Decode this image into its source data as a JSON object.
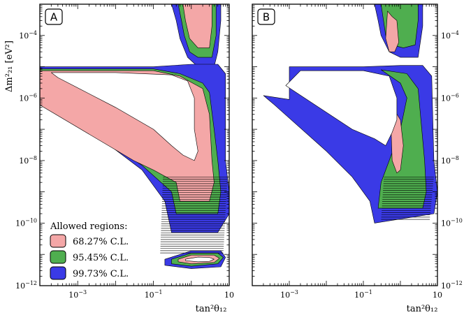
{
  "colors": {
    "c68": "#f4a7a7",
    "c95": "#4fae4f",
    "c99": "#3a3ae6",
    "frame": "#000000"
  },
  "chart_data": {
    "type": "contour",
    "xscale": "log",
    "yscale": "log",
    "xlim": [
      0.0001,
      10
    ],
    "ylim": [
      1e-12,
      0.001
    ],
    "grid": false,
    "ylabel": "Δm²₂₁ [eV²]",
    "xlabel": "tan²θ₁₂",
    "x_ticks": [
      {
        "value": 0.001,
        "base": "10",
        "exp": "−3"
      },
      {
        "value": 0.1,
        "base": "10",
        "exp": "−1"
      },
      {
        "value": 10,
        "base": "10",
        "exp": ""
      }
    ],
    "y_ticks": [
      {
        "value": 0.0001,
        "base": "10",
        "exp": "−4"
      },
      {
        "value": 1e-06,
        "base": "10",
        "exp": "−6"
      },
      {
        "value": 1e-08,
        "base": "10",
        "exp": "−8"
      },
      {
        "value": 1e-10,
        "base": "10",
        "exp": "−10"
      },
      {
        "value": 1e-12,
        "base": "10",
        "exp": "−12"
      }
    ],
    "legend": {
      "title": "Allowed regions:",
      "placement": "bottom-left of panel A",
      "entries": [
        {
          "label": "68.27% C.L.",
          "color_key": "c68"
        },
        {
          "label": "95.45% C.L.",
          "color_key": "c95"
        },
        {
          "label": "99.73% C.L.",
          "color_key": "c99"
        }
      ]
    },
    "panels": [
      {
        "label": "A",
        "y_axis_side": "left",
        "regions": [
          {
            "cl": "99.73",
            "points": [
              [
                0.3,
                0.001
              ],
              [
                0.4,
                0.0003
              ],
              [
                0.5,
                8e-05
              ],
              [
                0.8,
                2e-05
              ],
              [
                1.5,
                1e-05
              ],
              [
                4,
                1e-05
              ],
              [
                5,
                3e-05
              ],
              [
                6,
                0.0003
              ],
              [
                6,
                0.001
              ]
            ]
          },
          {
            "cl": "95.45",
            "points": [
              [
                0.45,
                0.001
              ],
              [
                0.55,
                0.0003
              ],
              [
                0.65,
                0.0001
              ],
              [
                0.9,
                3e-05
              ],
              [
                1.5,
                2e-05
              ],
              [
                3.5,
                2e-05
              ],
              [
                4.5,
                0.0001
              ],
              [
                4.5,
                0.001
              ]
            ]
          },
          {
            "cl": "68.27",
            "points": [
              [
                0.6,
                0.001
              ],
              [
                0.7,
                0.0003
              ],
              [
                0.9,
                8e-05
              ],
              [
                1.5,
                4e-05
              ],
              [
                3,
                4e-05
              ],
              [
                3.5,
                0.0002
              ],
              [
                3.5,
                0.001
              ]
            ]
          },
          {
            "cl": "99.73",
            "points": [
              [
                0.0001,
                1e-05
              ],
              [
                0.01,
                1e-05
              ],
              [
                0.1,
                1e-05
              ],
              [
                1,
                1.2e-05
              ],
              [
                5,
                1.2e-05
              ],
              [
                8,
                6e-06
              ],
              [
                8,
                1e-08
              ],
              [
                10,
                1e-09
              ],
              [
                10,
                2e-10
              ],
              [
                5,
                5e-11
              ],
              [
                0.3,
                5e-11
              ],
              [
                0.2,
                5e-10
              ],
              [
                0.05,
                5e-09
              ],
              [
                0.0001,
                1.5e-06
              ]
            ]
          },
          {
            "cl": "95.45",
            "points": [
              [
                0.0001,
                8.5e-06
              ],
              [
                0.1,
                8.5e-06
              ],
              [
                0.5,
                6e-06
              ],
              [
                2,
                3e-06
              ],
              [
                3,
                1.5e-06
              ],
              [
                4,
                1e-07
              ],
              [
                5,
                1e-08
              ],
              [
                6,
                1e-09
              ],
              [
                5,
                2e-10
              ],
              [
                0.4,
                2e-10
              ],
              [
                0.3,
                1e-09
              ],
              [
                0.05,
                7e-09
              ],
              [
                0.0001,
                1e-06
              ]
            ]
          },
          {
            "cl": "68.27",
            "points": [
              [
                0.0001,
                7.5e-06
              ],
              [
                0.1,
                7.5e-06
              ],
              [
                0.5,
                5e-06
              ],
              [
                2,
                2e-06
              ],
              [
                3,
                3e-07
              ],
              [
                3.5,
                1e-08
              ],
              [
                4,
                2e-09
              ],
              [
                3,
                5e-10
              ],
              [
                0.5,
                5e-10
              ],
              [
                0.4,
                2e-09
              ],
              [
                0.1,
                5e-09
              ],
              [
                0.03,
                1e-08
              ],
              [
                0.0001,
                6e-07
              ]
            ]
          },
          {
            "cl": "99.73",
            "points": [
              [
                0.2,
                7e-12
              ],
              [
                1,
                1.3e-11
              ],
              [
                6,
                1.3e-11
              ],
              [
                8,
                8e-12
              ],
              [
                6,
                4e-12
              ],
              [
                1,
                3.5e-12
              ],
              [
                0.2,
                4.5e-12
              ]
            ]
          },
          {
            "cl": "95.45",
            "points": [
              [
                0.3,
                7e-12
              ],
              [
                1,
                1.1e-11
              ],
              [
                5,
                1.1e-11
              ],
              [
                7,
                8e-12
              ],
              [
                5,
                5e-12
              ],
              [
                1,
                4.2e-12
              ],
              [
                0.3,
                5e-12
              ]
            ]
          },
          {
            "cl": "68.27",
            "points": [
              [
                0.45,
                7e-12
              ],
              [
                1,
                9.5e-12
              ],
              [
                4,
                9.5e-12
              ],
              [
                5.5,
                7.5e-12
              ],
              [
                4,
                5.5e-12
              ],
              [
                1,
                5e-12
              ],
              [
                0.45,
                5.8e-12
              ]
            ]
          }
        ],
        "holes": [
          {
            "points": [
              [
                0.0002,
                6.5e-06
              ],
              [
                0.01,
                6.5e-06
              ],
              [
                0.3,
                5.5e-06
              ],
              [
                0.8,
                3.5e-06
              ],
              [
                1.2,
                1e-06
              ],
              [
                1.2,
                1e-07
              ],
              [
                1.5,
                2e-08
              ],
              [
                1.2,
                1e-08
              ],
              [
                0.6,
                1.5e-08
              ],
              [
                0.3,
                3e-08
              ],
              [
                0.1,
                1e-07
              ],
              [
                0.01,
                5e-07
              ],
              [
                0.0003,
                4.5e-06
              ]
            ]
          },
          {
            "points": [
              [
                0.7,
                7e-12
              ],
              [
                1.5,
                8.2e-12
              ],
              [
                3,
                8e-12
              ],
              [
                4,
                7e-12
              ],
              [
                3,
                6e-12
              ],
              [
                1.5,
                5.8e-12
              ],
              [
                0.7,
                6.3e-12
              ]
            ]
          }
        ],
        "fringe": {
          "ymin": 1e-11,
          "ymax": 3e-09,
          "xmin": 0.15,
          "xmax": 9
        }
      },
      {
        "label": "B",
        "y_axis_side": "right",
        "regions": [
          {
            "cl": "99.73",
            "points": [
              [
                0.2,
                0.001
              ],
              [
                0.25,
                0.0003
              ],
              [
                0.3,
                0.0001
              ],
              [
                0.5,
                3e-05
              ],
              [
                1,
                2e-05
              ],
              [
                3,
                2e-05
              ],
              [
                4,
                0.0002
              ],
              [
                4,
                0.001
              ]
            ]
          },
          {
            "cl": "95.45",
            "points": [
              [
                0.3,
                0.001
              ],
              [
                0.35,
                0.0003
              ],
              [
                0.4,
                0.0001
              ],
              [
                0.6,
                5e-05
              ],
              [
                1.2,
                4e-05
              ],
              [
                2.5,
                5e-05
              ],
              [
                3,
                0.0003
              ],
              [
                3,
                0.001
              ]
            ]
          },
          {
            "cl": "68.27",
            "points": [
              [
                0.45,
                0.0006
              ],
              [
                0.6,
                0.0004
              ],
              [
                0.8,
                0.0003
              ],
              [
                0.9,
                6e-05
              ],
              [
                0.7,
                3e-05
              ],
              [
                0.5,
                3e-05
              ],
              [
                0.4,
                8e-05
              ]
            ]
          },
          {
            "cl": "99.73",
            "points": [
              [
                0.001,
                1e-05
              ],
              [
                0.1,
                1e-05
              ],
              [
                1,
                1.1e-05
              ],
              [
                4,
                1.1e-05
              ],
              [
                7,
                5e-06
              ],
              [
                8,
                1e-08
              ],
              [
                10,
                1e-09
              ],
              [
                8,
                2e-10
              ],
              [
                0.2,
                1e-10
              ],
              [
                0.15,
                5e-10
              ],
              [
                0.05,
                3e-09
              ],
              [
                0.01,
                2e-08
              ],
              [
                0.0004,
                6e-07
              ],
              [
                0.0002,
                1.2e-06
              ],
              [
                0.001,
                9e-07
              ]
            ]
          },
          {
            "cl": "95.45",
            "points": [
              [
                0.3,
                8e-06
              ],
              [
                1.5,
                6e-06
              ],
              [
                3,
                2e-06
              ],
              [
                4.5,
                1e-08
              ],
              [
                5,
                1e-09
              ],
              [
                4,
                3e-10
              ],
              [
                0.25,
                3e-10
              ],
              [
                0.3,
                2e-09
              ],
              [
                0.5,
                1e-08
              ],
              [
                1,
                1e-07
              ],
              [
                1.5,
                1e-06
              ],
              [
                1,
                3e-06
              ]
            ]
          },
          {
            "cl": "68.27",
            "points": [
              [
                0.55,
                2e-07
              ],
              [
                0.7,
                4e-07
              ],
              [
                1,
                2e-07
              ],
              [
                1.2,
                3e-08
              ],
              [
                1,
                5e-09
              ],
              [
                0.8,
                4e-09
              ],
              [
                0.6,
                1e-08
              ]
            ]
          }
        ],
        "holes": [
          {
            "points": [
              [
                0.002,
                7.5e-06
              ],
              [
                0.1,
                7.5e-06
              ],
              [
                0.5,
                5e-06
              ],
              [
                0.8,
                1e-06
              ],
              [
                0.8,
                2e-07
              ],
              [
                0.6,
                8e-08
              ],
              [
                0.4,
                3e-08
              ],
              [
                0.2,
                5e-08
              ],
              [
                0.05,
                1e-07
              ],
              [
                0.005,
                6e-07
              ],
              [
                0.0008,
                2.5e-06
              ]
            ]
          }
        ],
        "fringe": {
          "ymin": 1.2e-10,
          "ymax": 3e-09,
          "xmin": 0.3,
          "xmax": 8
        }
      }
    ]
  }
}
